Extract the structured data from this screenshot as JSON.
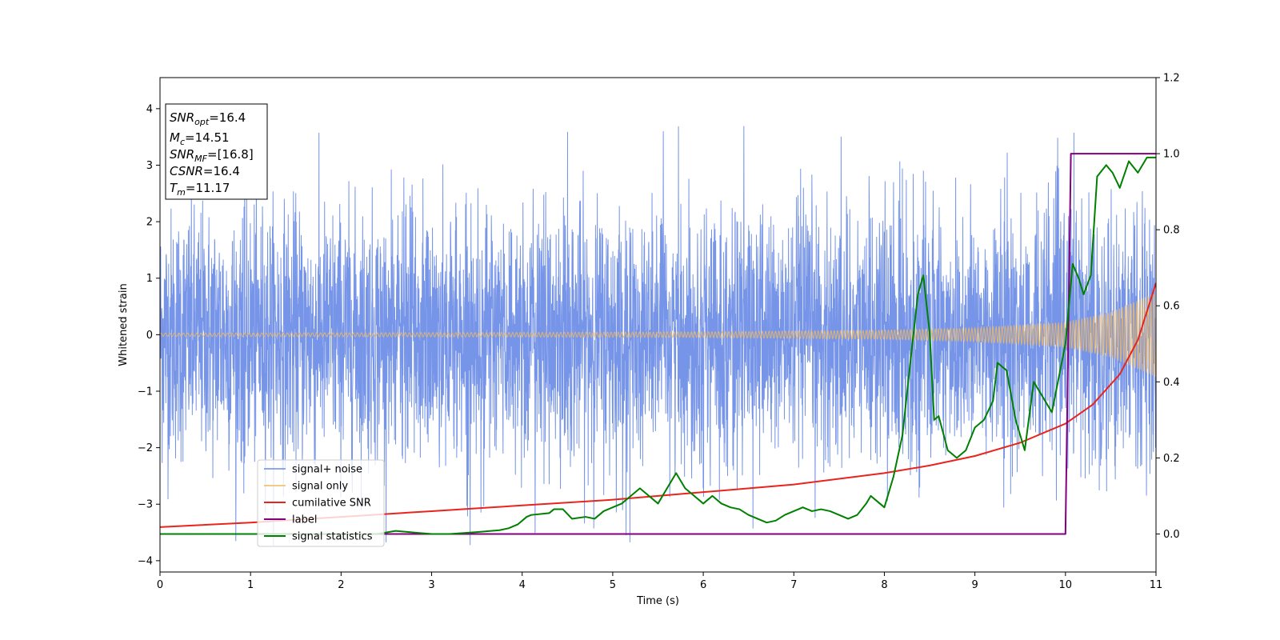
{
  "chart_data": {
    "type": "line",
    "title": "",
    "xlabel": "Time (s)",
    "ylabel": "Whitened strain",
    "xlim": [
      0,
      11
    ],
    "ylim": [
      -4.2,
      4.55
    ],
    "y2lim": [
      -0.1,
      1.2
    ],
    "x_ticks": [
      "0",
      "1",
      "2",
      "3",
      "4",
      "5",
      "6",
      "7",
      "8",
      "9",
      "10",
      "11"
    ],
    "y_ticks": [
      "−4",
      "−3",
      "−2",
      "−1",
      "0",
      "1",
      "2",
      "3",
      "4"
    ],
    "y2_ticks": [
      "0.0",
      "0.2",
      "0.4",
      "0.6",
      "0.8",
      "1.0",
      "1.2"
    ],
    "grid": false,
    "legend_position": "lower-left",
    "series": [
      {
        "name": "signal+ noise",
        "axis": "left",
        "color": "#6b8ce6",
        "noise_sigma": 1.1,
        "envelope": {
          "max": 3.7,
          "min": -3.8
        }
      },
      {
        "name": "signal only",
        "axis": "left",
        "color": "#f0b860",
        "amplitude_x": [
          0,
          4,
          6,
          8,
          9,
          10,
          10.5,
          11
        ],
        "amplitude_y": [
          0.03,
          0.04,
          0.05,
          0.08,
          0.12,
          0.22,
          0.4,
          0.75
        ],
        "frequency_x": [
          0,
          11
        ],
        "frequency_y": [
          20,
          32
        ]
      },
      {
        "name": "cumilative SNR",
        "axis": "right",
        "color": "#e8241c",
        "x": [
          0,
          1,
          2,
          3,
          4,
          5,
          6,
          7,
          7.5,
          8,
          8.5,
          9,
          9.5,
          10,
          10.3,
          10.6,
          10.8,
          11
        ],
        "y": [
          0.018,
          0.03,
          0.045,
          0.06,
          0.075,
          0.09,
          0.11,
          0.13,
          0.145,
          0.16,
          0.18,
          0.205,
          0.24,
          0.29,
          0.34,
          0.42,
          0.51,
          0.66
        ]
      },
      {
        "name": "label",
        "axis": "right",
        "color": "#800080",
        "x": [
          0,
          10,
          10.06,
          11
        ],
        "y": [
          0.0,
          0.0,
          1.0,
          1.0
        ]
      },
      {
        "name": "signal statistics",
        "axis": "right",
        "color": "#008000",
        "x": [
          0,
          0.5,
          1,
          1.5,
          2,
          2.4,
          2.6,
          2.8,
          3,
          3.2,
          3.5,
          3.75,
          3.85,
          3.95,
          4.05,
          4.1,
          4.3,
          4.35,
          4.45,
          4.55,
          4.7,
          4.8,
          4.9,
          5.0,
          5.1,
          5.2,
          5.3,
          5.4,
          5.5,
          5.6,
          5.7,
          5.8,
          5.9,
          6.0,
          6.1,
          6.2,
          6.3,
          6.4,
          6.5,
          6.6,
          6.7,
          6.8,
          6.9,
          7.0,
          7.1,
          7.2,
          7.3,
          7.4,
          7.5,
          7.6,
          7.7,
          7.8,
          7.85,
          7.9,
          8.0,
          8.1,
          8.2,
          8.3,
          8.37,
          8.43,
          8.5,
          8.55,
          8.6,
          8.7,
          8.8,
          8.9,
          9.0,
          9.1,
          9.2,
          9.25,
          9.35,
          9.45,
          9.55,
          9.65,
          9.75,
          9.85,
          10.0,
          10.08,
          10.15,
          10.2,
          10.28,
          10.35,
          10.45,
          10.52,
          10.6,
          10.7,
          10.8,
          10.9,
          11
        ],
        "y": [
          0.0,
          0.0,
          0.0,
          0.0,
          0.0,
          0.0,
          0.008,
          0.004,
          0.0,
          0.0,
          0.005,
          0.01,
          0.015,
          0.025,
          0.045,
          0.05,
          0.055,
          0.065,
          0.065,
          0.04,
          0.045,
          0.04,
          0.06,
          0.07,
          0.08,
          0.1,
          0.12,
          0.1,
          0.08,
          0.12,
          0.16,
          0.12,
          0.1,
          0.08,
          0.1,
          0.08,
          0.07,
          0.065,
          0.05,
          0.04,
          0.03,
          0.035,
          0.05,
          0.06,
          0.07,
          0.06,
          0.065,
          0.06,
          0.05,
          0.04,
          0.05,
          0.08,
          0.1,
          0.09,
          0.07,
          0.15,
          0.26,
          0.48,
          0.63,
          0.68,
          0.53,
          0.3,
          0.31,
          0.22,
          0.2,
          0.22,
          0.28,
          0.3,
          0.35,
          0.45,
          0.43,
          0.3,
          0.22,
          0.4,
          0.36,
          0.32,
          0.5,
          0.71,
          0.67,
          0.63,
          0.68,
          0.94,
          0.97,
          0.95,
          0.91,
          0.98,
          0.95,
          0.99,
          0.99
        ]
      }
    ],
    "annotation_box": {
      "position": "top-left",
      "lines": [
        {
          "main": "SNR",
          "sub": "opt",
          "value": "=16.4"
        },
        {
          "main": "M",
          "sub": "c",
          "value": "=14.51"
        },
        {
          "main": "SNR",
          "sub": "MF",
          "value": "=[16.8]"
        },
        {
          "main": "CSNR",
          "sub": "",
          "value": "=16.4"
        },
        {
          "main": "T",
          "sub": "m",
          "value": "=11.17"
        }
      ]
    }
  }
}
